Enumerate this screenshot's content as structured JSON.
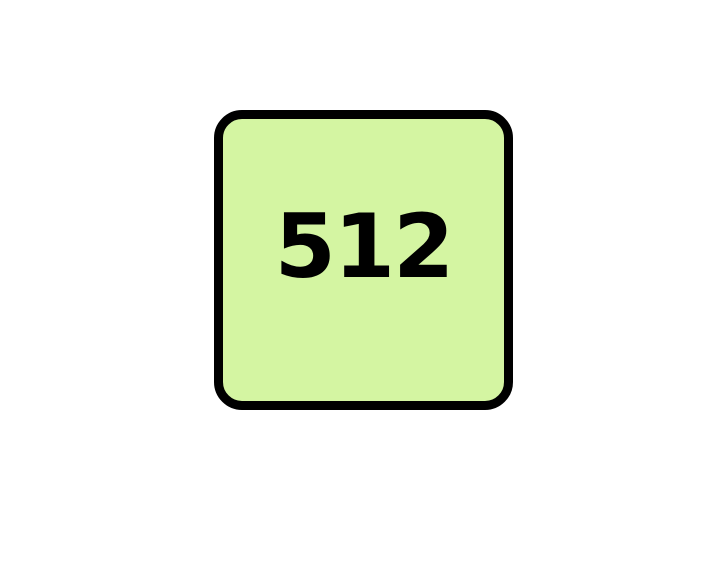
{
  "tile": {
    "value": "512",
    "background_color": "#d4f5a2",
    "border_color": "#000000",
    "text_color": "#000000"
  }
}
